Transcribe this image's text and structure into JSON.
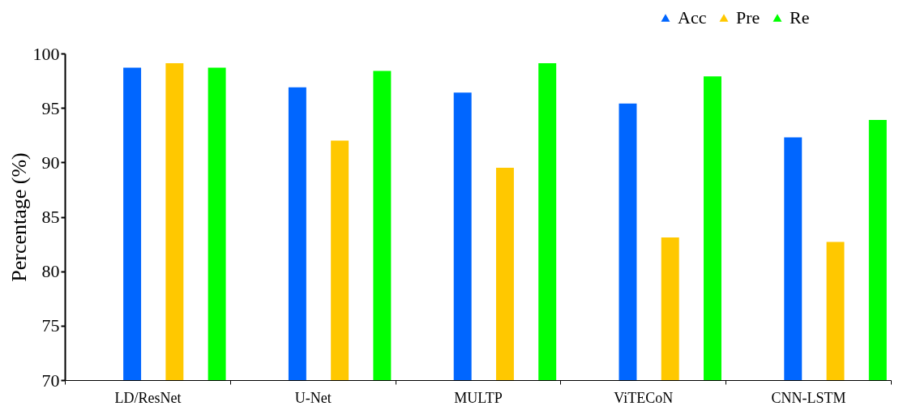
{
  "chart_data": {
    "type": "bar",
    "ylabel": "Percentage (%)",
    "categories": [
      "LD/ResNet",
      "U-Net",
      "MULTP",
      "ViTECoN",
      "CNN-LSTM"
    ],
    "series": [
      {
        "name": "Acc",
        "color": "#0066ff",
        "values": [
          98.7,
          96.9,
          96.4,
          95.4,
          92.3
        ]
      },
      {
        "name": "Pre",
        "color": "#ffc800",
        "values": [
          99.1,
          92.0,
          89.5,
          83.1,
          82.7
        ]
      },
      {
        "name": "Re",
        "color": "#00ff00",
        "values": [
          98.7,
          98.4,
          99.1,
          97.9,
          93.9
        ]
      }
    ],
    "ylim": [
      70,
      100
    ],
    "yticks": [
      70,
      75,
      80,
      85,
      90,
      95,
      100
    ],
    "grid": false,
    "legend": "top right"
  }
}
